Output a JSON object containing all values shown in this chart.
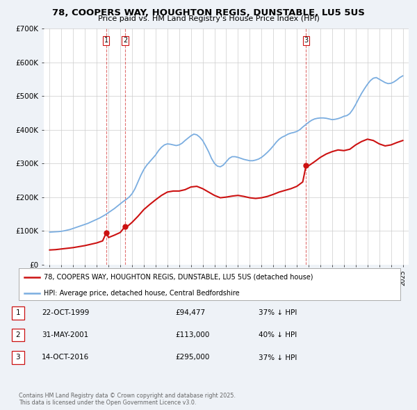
{
  "title_line1": "78, COOPERS WAY, HOUGHTON REGIS, DUNSTABLE, LU5 5US",
  "title_line2": "Price paid vs. HM Land Registry's House Price Index (HPI)",
  "ylim": [
    0,
    700000
  ],
  "yticks": [
    0,
    100000,
    200000,
    300000,
    400000,
    500000,
    600000,
    700000
  ],
  "ytick_labels": [
    "£0",
    "£100K",
    "£200K",
    "£300K",
    "£400K",
    "£500K",
    "£600K",
    "£700K"
  ],
  "bg_color": "#eef2f7",
  "plot_bg_color": "#ffffff",
  "red_color": "#cc1111",
  "blue_color": "#7aade0",
  "grid_color": "#cccccc",
  "purchase_points": [
    {
      "year": 1999.81,
      "price": 94477,
      "label": "1"
    },
    {
      "year": 2001.41,
      "price": 113000,
      "label": "2"
    },
    {
      "year": 2016.79,
      "price": 295000,
      "label": "3"
    }
  ],
  "transaction_rows": [
    {
      "num": "1",
      "date": "22-OCT-1999",
      "price": "£94,477",
      "pct": "37% ↓ HPI"
    },
    {
      "num": "2",
      "date": "31-MAY-2001",
      "price": "£113,000",
      "pct": "40% ↓ HPI"
    },
    {
      "num": "3",
      "date": "14-OCT-2016",
      "price": "£295,000",
      "pct": "37% ↓ HPI"
    }
  ],
  "legend_line1": "78, COOPERS WAY, HOUGHTON REGIS, DUNSTABLE, LU5 5US (detached house)",
  "legend_line2": "HPI: Average price, detached house, Central Bedfordshire",
  "footer": "Contains HM Land Registry data © Crown copyright and database right 2025.\nThis data is licensed under the Open Government Licence v3.0.",
  "hpi_data": [
    [
      1995.0,
      96000
    ],
    [
      1995.25,
      96500
    ],
    [
      1995.5,
      97000
    ],
    [
      1995.75,
      97500
    ],
    [
      1996.0,
      98500
    ],
    [
      1996.25,
      100000
    ],
    [
      1996.5,
      102000
    ],
    [
      1996.75,
      104000
    ],
    [
      1997.0,
      107000
    ],
    [
      1997.25,
      110000
    ],
    [
      1997.5,
      113000
    ],
    [
      1997.75,
      116000
    ],
    [
      1998.0,
      119000
    ],
    [
      1998.25,
      122000
    ],
    [
      1998.5,
      126000
    ],
    [
      1998.75,
      130000
    ],
    [
      1999.0,
      134000
    ],
    [
      1999.25,
      138000
    ],
    [
      1999.5,
      143000
    ],
    [
      1999.75,
      148000
    ],
    [
      2000.0,
      154000
    ],
    [
      2000.25,
      160000
    ],
    [
      2000.5,
      166000
    ],
    [
      2000.75,
      173000
    ],
    [
      2001.0,
      180000
    ],
    [
      2001.25,
      187000
    ],
    [
      2001.5,
      193000
    ],
    [
      2001.75,
      200000
    ],
    [
      2002.0,
      210000
    ],
    [
      2002.25,
      225000
    ],
    [
      2002.5,
      245000
    ],
    [
      2002.75,
      265000
    ],
    [
      2003.0,
      282000
    ],
    [
      2003.25,
      295000
    ],
    [
      2003.5,
      305000
    ],
    [
      2003.75,
      315000
    ],
    [
      2004.0,
      325000
    ],
    [
      2004.25,
      338000
    ],
    [
      2004.5,
      348000
    ],
    [
      2004.75,
      355000
    ],
    [
      2005.0,
      358000
    ],
    [
      2005.25,
      357000
    ],
    [
      2005.5,
      355000
    ],
    [
      2005.75,
      353000
    ],
    [
      2006.0,
      355000
    ],
    [
      2006.25,
      360000
    ],
    [
      2006.5,
      368000
    ],
    [
      2006.75,
      375000
    ],
    [
      2007.0,
      382000
    ],
    [
      2007.25,
      387000
    ],
    [
      2007.5,
      385000
    ],
    [
      2007.75,
      378000
    ],
    [
      2008.0,
      368000
    ],
    [
      2008.25,
      352000
    ],
    [
      2008.5,
      335000
    ],
    [
      2008.75,
      315000
    ],
    [
      2009.0,
      300000
    ],
    [
      2009.25,
      292000
    ],
    [
      2009.5,
      290000
    ],
    [
      2009.75,
      295000
    ],
    [
      2010.0,
      305000
    ],
    [
      2010.25,
      315000
    ],
    [
      2010.5,
      320000
    ],
    [
      2010.75,
      320000
    ],
    [
      2011.0,
      318000
    ],
    [
      2011.25,
      315000
    ],
    [
      2011.5,
      312000
    ],
    [
      2011.75,
      310000
    ],
    [
      2012.0,
      308000
    ],
    [
      2012.25,
      308000
    ],
    [
      2012.5,
      310000
    ],
    [
      2012.75,
      313000
    ],
    [
      2013.0,
      318000
    ],
    [
      2013.25,
      325000
    ],
    [
      2013.5,
      333000
    ],
    [
      2013.75,
      342000
    ],
    [
      2014.0,
      352000
    ],
    [
      2014.25,
      363000
    ],
    [
      2014.5,
      372000
    ],
    [
      2014.75,
      378000
    ],
    [
      2015.0,
      382000
    ],
    [
      2015.25,
      387000
    ],
    [
      2015.5,
      390000
    ],
    [
      2015.75,
      392000
    ],
    [
      2016.0,
      395000
    ],
    [
      2016.25,
      400000
    ],
    [
      2016.5,
      408000
    ],
    [
      2016.75,
      415000
    ],
    [
      2017.0,
      422000
    ],
    [
      2017.25,
      428000
    ],
    [
      2017.5,
      432000
    ],
    [
      2017.75,
      434000
    ],
    [
      2018.0,
      435000
    ],
    [
      2018.25,
      435000
    ],
    [
      2018.5,
      434000
    ],
    [
      2018.75,
      432000
    ],
    [
      2019.0,
      430000
    ],
    [
      2019.25,
      431000
    ],
    [
      2019.5,
      433000
    ],
    [
      2019.75,
      436000
    ],
    [
      2020.0,
      440000
    ],
    [
      2020.25,
      442000
    ],
    [
      2020.5,
      448000
    ],
    [
      2020.75,
      460000
    ],
    [
      2021.0,
      475000
    ],
    [
      2021.25,
      492000
    ],
    [
      2021.5,
      508000
    ],
    [
      2021.75,
      522000
    ],
    [
      2022.0,
      535000
    ],
    [
      2022.25,
      546000
    ],
    [
      2022.5,
      553000
    ],
    [
      2022.75,
      555000
    ],
    [
      2023.0,
      550000
    ],
    [
      2023.25,
      545000
    ],
    [
      2023.5,
      540000
    ],
    [
      2023.75,
      537000
    ],
    [
      2024.0,
      538000
    ],
    [
      2024.25,
      542000
    ],
    [
      2024.5,
      548000
    ],
    [
      2024.75,
      555000
    ],
    [
      2025.0,
      560000
    ]
  ],
  "red_data": [
    [
      1995.0,
      43000
    ],
    [
      1995.5,
      44000
    ],
    [
      1996.0,
      46000
    ],
    [
      1996.5,
      48000
    ],
    [
      1997.0,
      50000
    ],
    [
      1997.5,
      53000
    ],
    [
      1998.0,
      56000
    ],
    [
      1998.5,
      60000
    ],
    [
      1999.0,
      64000
    ],
    [
      1999.5,
      70000
    ],
    [
      1999.81,
      94477
    ],
    [
      2000.0,
      80000
    ],
    [
      2000.5,
      87000
    ],
    [
      2001.0,
      95000
    ],
    [
      2001.41,
      113000
    ],
    [
      2001.5,
      110000
    ],
    [
      2002.0,
      125000
    ],
    [
      2002.5,
      143000
    ],
    [
      2003.0,
      163000
    ],
    [
      2003.5,
      178000
    ],
    [
      2004.0,
      192000
    ],
    [
      2004.5,
      205000
    ],
    [
      2005.0,
      215000
    ],
    [
      2005.5,
      218000
    ],
    [
      2006.0,
      218000
    ],
    [
      2006.5,
      222000
    ],
    [
      2007.0,
      230000
    ],
    [
      2007.5,
      232000
    ],
    [
      2008.0,
      225000
    ],
    [
      2008.5,
      215000
    ],
    [
      2009.0,
      205000
    ],
    [
      2009.5,
      198000
    ],
    [
      2010.0,
      200000
    ],
    [
      2010.5,
      203000
    ],
    [
      2011.0,
      205000
    ],
    [
      2011.5,
      202000
    ],
    [
      2012.0,
      198000
    ],
    [
      2012.5,
      196000
    ],
    [
      2013.0,
      198000
    ],
    [
      2013.5,
      202000
    ],
    [
      2014.0,
      208000
    ],
    [
      2014.5,
      215000
    ],
    [
      2015.0,
      220000
    ],
    [
      2015.5,
      225000
    ],
    [
      2016.0,
      232000
    ],
    [
      2016.5,
      245000
    ],
    [
      2016.79,
      295000
    ],
    [
      2017.0,
      293000
    ],
    [
      2017.5,
      305000
    ],
    [
      2018.0,
      318000
    ],
    [
      2018.5,
      328000
    ],
    [
      2019.0,
      335000
    ],
    [
      2019.5,
      340000
    ],
    [
      2020.0,
      338000
    ],
    [
      2020.5,
      342000
    ],
    [
      2021.0,
      355000
    ],
    [
      2021.5,
      365000
    ],
    [
      2022.0,
      372000
    ],
    [
      2022.5,
      368000
    ],
    [
      2023.0,
      358000
    ],
    [
      2023.5,
      352000
    ],
    [
      2024.0,
      355000
    ],
    [
      2024.5,
      362000
    ],
    [
      2025.0,
      368000
    ]
  ]
}
